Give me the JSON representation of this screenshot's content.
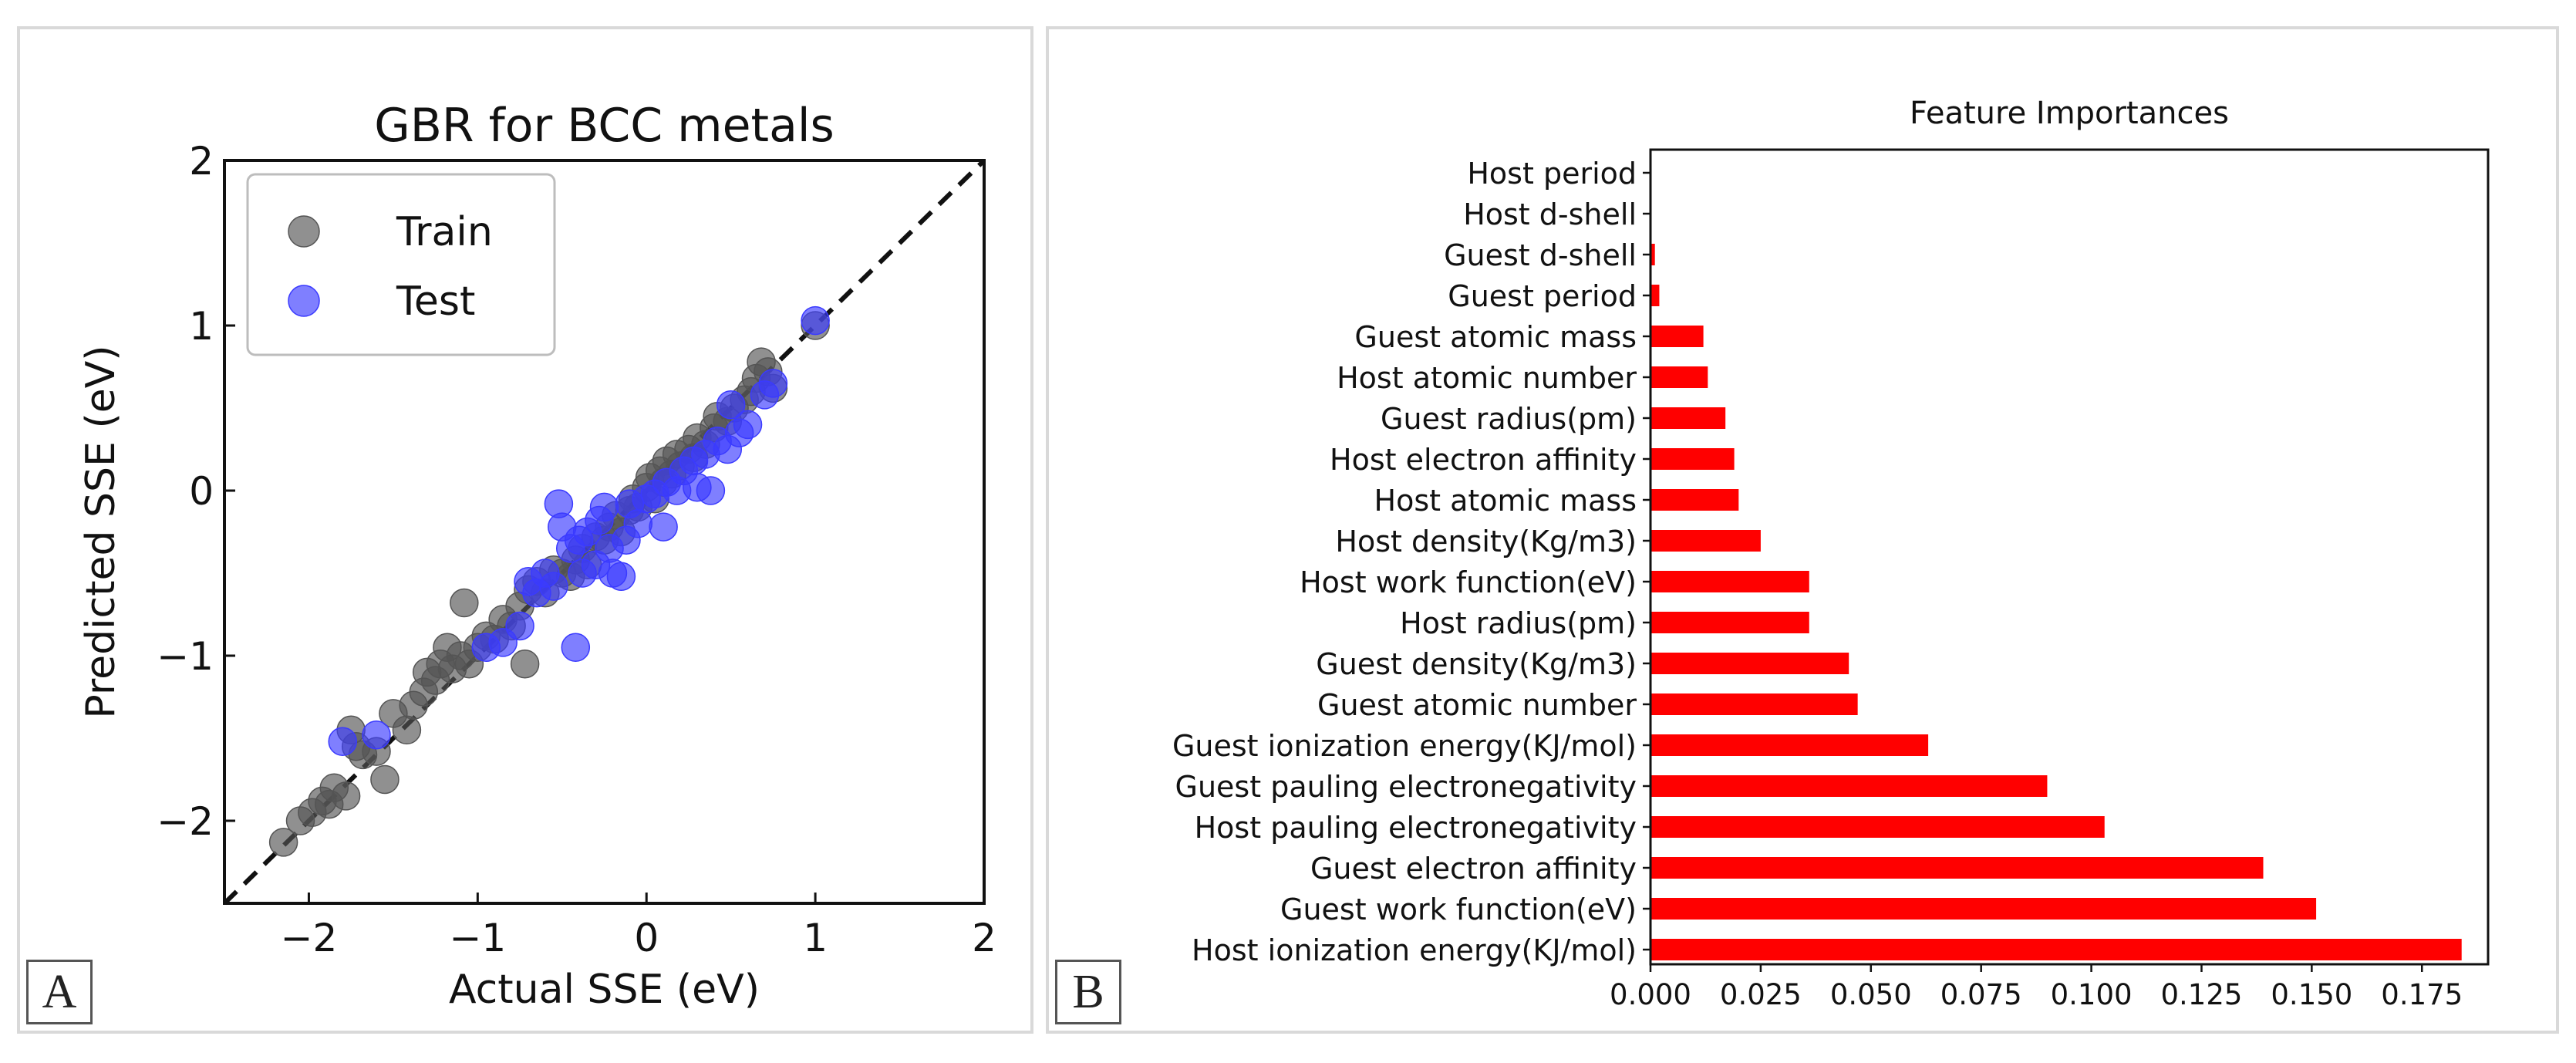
{
  "panel_a": {
    "label": "A",
    "chart_data": {
      "type": "scatter",
      "title": "GBR for BCC metals",
      "xlabel": "Actual SSE (eV)",
      "ylabel": "Predicted SSE (eV)",
      "xlim": [
        -2.5,
        2
      ],
      "ylim": [
        -2.5,
        2
      ],
      "xticks": [
        -2,
        -1,
        0,
        1,
        2
      ],
      "yticks": [
        -2,
        -1,
        0,
        1,
        2
      ],
      "tick_labels": [
        "−2",
        "−1",
        "0",
        "1",
        "2"
      ],
      "reference_line": "y = x (dashed)",
      "legend": {
        "position": "top-left",
        "entries": [
          "Train",
          "Test"
        ]
      },
      "colors": {
        "Train": "#555555",
        "Test": "#3a3aff"
      },
      "series": [
        {
          "name": "Train",
          "points": [
            [
              -2.15,
              -2.13
            ],
            [
              -2.05,
              -2.0
            ],
            [
              -1.98,
              -1.95
            ],
            [
              -1.92,
              -1.88
            ],
            [
              -1.85,
              -1.8
            ],
            [
              -1.88,
              -1.9
            ],
            [
              -1.78,
              -1.85
            ],
            [
              -1.72,
              -1.55
            ],
            [
              -1.75,
              -1.45
            ],
            [
              -1.68,
              -1.6
            ],
            [
              -1.6,
              -1.58
            ],
            [
              -1.55,
              -1.75
            ],
            [
              -1.5,
              -1.35
            ],
            [
              -1.42,
              -1.45
            ],
            [
              -1.38,
              -1.3
            ],
            [
              -1.32,
              -1.22
            ],
            [
              -1.3,
              -1.1
            ],
            [
              -1.25,
              -1.15
            ],
            [
              -1.22,
              -1.05
            ],
            [
              -1.18,
              -0.95
            ],
            [
              -1.15,
              -1.08
            ],
            [
              -1.1,
              -1.0
            ],
            [
              -1.08,
              -0.68
            ],
            [
              -1.05,
              -1.05
            ],
            [
              -1.0,
              -0.95
            ],
            [
              -0.95,
              -0.88
            ],
            [
              -0.9,
              -0.9
            ],
            [
              -0.85,
              -0.78
            ],
            [
              -0.8,
              -0.82
            ],
            [
              -0.75,
              -0.7
            ],
            [
              -0.72,
              -1.05
            ],
            [
              -0.7,
              -0.6
            ],
            [
              -0.65,
              -0.55
            ],
            [
              -0.6,
              -0.62
            ],
            [
              -0.55,
              -0.48
            ],
            [
              -0.5,
              -0.5
            ],
            [
              -0.45,
              -0.52
            ],
            [
              -0.42,
              -0.42
            ],
            [
              -0.38,
              -0.35
            ],
            [
              -0.35,
              -0.45
            ],
            [
              -0.3,
              -0.28
            ],
            [
              -0.25,
              -0.3
            ],
            [
              -0.22,
              -0.22
            ],
            [
              -0.18,
              -0.15
            ],
            [
              -0.15,
              -0.25
            ],
            [
              -0.1,
              -0.12
            ],
            [
              -0.08,
              -0.05
            ],
            [
              -0.05,
              -0.1
            ],
            [
              0.0,
              0.02
            ],
            [
              0.02,
              0.08
            ],
            [
              0.05,
              -0.05
            ],
            [
              0.08,
              0.12
            ],
            [
              0.1,
              0.05
            ],
            [
              0.12,
              0.18
            ],
            [
              0.15,
              0.1
            ],
            [
              0.18,
              0.22
            ],
            [
              0.2,
              0.15
            ],
            [
              0.25,
              0.25
            ],
            [
              0.28,
              0.2
            ],
            [
              0.3,
              0.32
            ],
            [
              0.35,
              0.28
            ],
            [
              0.4,
              0.38
            ],
            [
              0.42,
              0.45
            ],
            [
              0.48,
              0.42
            ],
            [
              0.52,
              0.5
            ],
            [
              0.58,
              0.55
            ],
            [
              0.62,
              0.6
            ],
            [
              0.65,
              0.68
            ],
            [
              0.68,
              0.78
            ],
            [
              0.72,
              0.72
            ],
            [
              0.75,
              0.62
            ],
            [
              1.0,
              1.0
            ]
          ]
        },
        {
          "name": "Test",
          "points": [
            [
              -1.8,
              -1.52
            ],
            [
              -1.6,
              -1.48
            ],
            [
              -0.95,
              -0.95
            ],
            [
              -0.85,
              -0.92
            ],
            [
              -0.75,
              -0.82
            ],
            [
              -0.7,
              -0.55
            ],
            [
              -0.65,
              -0.62
            ],
            [
              -0.6,
              -0.5
            ],
            [
              -0.55,
              -0.58
            ],
            [
              -0.52,
              -0.08
            ],
            [
              -0.5,
              -0.22
            ],
            [
              -0.45,
              -0.35
            ],
            [
              -0.42,
              -0.95
            ],
            [
              -0.4,
              -0.3
            ],
            [
              -0.38,
              -0.5
            ],
            [
              -0.35,
              -0.25
            ],
            [
              -0.3,
              -0.45
            ],
            [
              -0.28,
              -0.18
            ],
            [
              -0.25,
              -0.1
            ],
            [
              -0.22,
              -0.35
            ],
            [
              -0.2,
              -0.5
            ],
            [
              -0.15,
              -0.52
            ],
            [
              -0.12,
              -0.3
            ],
            [
              -0.1,
              -0.08
            ],
            [
              -0.05,
              -0.2
            ],
            [
              0.0,
              -0.05
            ],
            [
              0.05,
              -0.02
            ],
            [
              0.1,
              -0.22
            ],
            [
              0.12,
              0.05
            ],
            [
              0.18,
              0.0
            ],
            [
              0.22,
              0.12
            ],
            [
              0.28,
              0.18
            ],
            [
              0.3,
              0.02
            ],
            [
              0.35,
              0.22
            ],
            [
              0.38,
              0.0
            ],
            [
              0.42,
              0.3
            ],
            [
              0.48,
              0.25
            ],
            [
              0.5,
              0.52
            ],
            [
              0.55,
              0.35
            ],
            [
              0.6,
              0.4
            ],
            [
              0.7,
              0.58
            ],
            [
              0.75,
              0.65
            ],
            [
              1.0,
              1.03
            ]
          ]
        }
      ]
    }
  },
  "panel_b": {
    "label": "B",
    "chart_data": {
      "type": "bar",
      "orientation": "horizontal",
      "title": "Feature Importances",
      "xlim": [
        0,
        0.19
      ],
      "xticks": [
        0.0,
        0.025,
        0.05,
        0.075,
        0.1,
        0.125,
        0.15,
        0.175
      ],
      "xtick_labels": [
        "0.000",
        "0.025",
        "0.050",
        "0.075",
        "0.100",
        "0.125",
        "0.150",
        "0.175"
      ],
      "bar_color": "#ff0000",
      "categories": [
        "Host period",
        "Host d-shell",
        "Guest d-shell",
        "Guest period",
        "Guest atomic mass",
        "Host atomic number",
        "Guest radius(pm)",
        "Host electron affinity",
        "Host atomic mass",
        "Host density(Kg/m3)",
        "Host work function(eV)",
        "Host radius(pm)",
        "Guest density(Kg/m3)",
        "Guest atomic number",
        "Guest ionization energy(KJ/mol)",
        "Guest pauling electronegativity",
        "Host pauling electronegativity",
        "Guest electron affinity",
        "Guest work function(eV)",
        "Host ionization energy(KJ/mol)"
      ],
      "values": [
        0.0,
        0.0,
        0.001,
        0.002,
        0.012,
        0.013,
        0.017,
        0.019,
        0.02,
        0.025,
        0.036,
        0.036,
        0.045,
        0.047,
        0.063,
        0.09,
        0.103,
        0.139,
        0.151,
        0.184
      ]
    }
  }
}
